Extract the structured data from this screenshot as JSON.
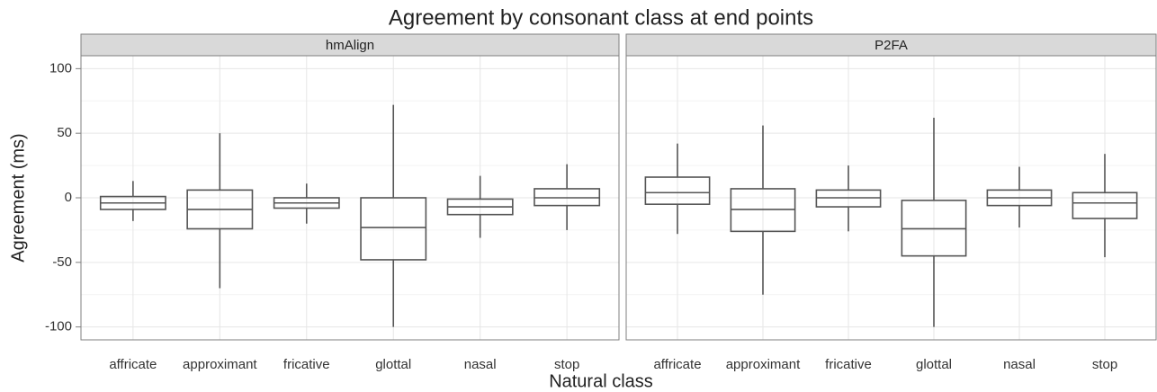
{
  "chart_data": {
    "type": "box",
    "title": "Agreement by consonant class at end points",
    "x_label": "Natural class",
    "y_label": "Agreement (ms)",
    "ylim": [
      -110,
      110
    ],
    "yticks": [
      -100,
      -50,
      0,
      50,
      100
    ],
    "grid": true,
    "color": "#555555",
    "categories": [
      "affricate",
      "approximant",
      "fricative",
      "glottal",
      "nasal",
      "stop"
    ],
    "panels": [
      {
        "name": "hmAlign",
        "min": [
          -18,
          -70,
          -20,
          -100,
          -31,
          -25
        ],
        "q1": [
          -9,
          -24,
          -8,
          -48,
          -13,
          -6
        ],
        "median": [
          -4,
          -9,
          -4,
          -23,
          -7,
          0
        ],
        "q3": [
          1,
          6,
          0,
          0,
          -1,
          7
        ],
        "max": [
          13,
          50,
          11,
          72,
          17,
          26
        ]
      },
      {
        "name": "P2FA",
        "min": [
          -28,
          -75,
          -26,
          -100,
          -23,
          -46
        ],
        "q1": [
          -5,
          -26,
          -7,
          -45,
          -6,
          -16
        ],
        "median": [
          4,
          -9,
          0,
          -24,
          0,
          -4
        ],
        "q3": [
          16,
          7,
          6,
          -2,
          6,
          4
        ],
        "max": [
          42,
          56,
          25,
          62,
          24,
          34
        ]
      }
    ]
  }
}
